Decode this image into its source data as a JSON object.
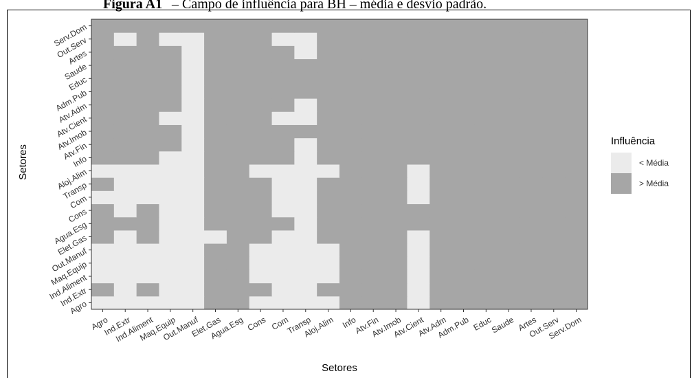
{
  "chart_data": {
    "type": "heatmap",
    "figure_label": "Figura A1",
    "title": "– Campo de influência para BH – média e desvio padrão.",
    "x_label": "Setores",
    "y_label": "Setores",
    "x_categories": [
      "Agro",
      "Ind.Extr",
      "Ind.Aliment",
      "Maq.Equip",
      "Out.Manuf",
      "Elet.Gas",
      "Agua.Esg",
      "Cons",
      "Com",
      "Transp",
      "Aloj.Alim",
      "Info",
      "Atv.Fin",
      "Atv.Imob",
      "Atv.Cient",
      "Atv.Adm",
      "Adm.Pub",
      "Educ",
      "Saude",
      "Artes",
      "Out.Serv",
      "Serv.Dom"
    ],
    "y_categories": [
      "Agro",
      "Ind.Extr",
      "Ind.Aliment",
      "Maq.Equip",
      "Out.Manuf",
      "Elet.Gas",
      "Agua.Esg",
      "Cons",
      "Com",
      "Transp",
      "Aloj.Alim",
      "Info",
      "Atv.Fin",
      "Atv.Imob",
      "Atv.Cient",
      "Atv.Adm",
      "Adm.Pub",
      "Educ",
      "Saude",
      "Artes",
      "Out.Serv",
      "Serv.Dom"
    ],
    "legend_title": "Influência",
    "levels": [
      {
        "name": "< Média",
        "color": "#ebebeb"
      },
      {
        "name": "> Média",
        "color": "#a6a6a6"
      }
    ],
    "values": [
      [
        0,
        0,
        0,
        0,
        0,
        1,
        1,
        0,
        0,
        0,
        0,
        1,
        1,
        1,
        0,
        1,
        1,
        1,
        1,
        1,
        1,
        1
      ],
      [
        1,
        0,
        1,
        0,
        0,
        1,
        1,
        1,
        0,
        0,
        1,
        1,
        1,
        1,
        0,
        1,
        1,
        1,
        1,
        1,
        1,
        1
      ],
      [
        0,
        0,
        0,
        0,
        0,
        1,
        1,
        0,
        0,
        0,
        0,
        1,
        1,
        1,
        0,
        1,
        1,
        1,
        1,
        1,
        1,
        1
      ],
      [
        0,
        0,
        0,
        0,
        0,
        1,
        1,
        0,
        0,
        0,
        0,
        1,
        1,
        1,
        0,
        1,
        1,
        1,
        1,
        1,
        1,
        1
      ],
      [
        0,
        0,
        0,
        0,
        0,
        1,
        1,
        0,
        0,
        0,
        0,
        1,
        1,
        1,
        0,
        1,
        1,
        1,
        1,
        1,
        1,
        1
      ],
      [
        1,
        0,
        1,
        0,
        0,
        0,
        1,
        1,
        0,
        0,
        1,
        1,
        1,
        1,
        0,
        1,
        1,
        1,
        1,
        1,
        1,
        1
      ],
      [
        1,
        1,
        1,
        0,
        0,
        1,
        1,
        1,
        1,
        0,
        1,
        1,
        1,
        1,
        1,
        1,
        1,
        1,
        1,
        1,
        1,
        1
      ],
      [
        1,
        0,
        1,
        0,
        0,
        1,
        1,
        1,
        0,
        0,
        1,
        1,
        1,
        1,
        1,
        1,
        1,
        1,
        1,
        1,
        1,
        1
      ],
      [
        0,
        0,
        0,
        0,
        0,
        1,
        1,
        1,
        0,
        0,
        1,
        1,
        1,
        1,
        0,
        1,
        1,
        1,
        1,
        1,
        1,
        1
      ],
      [
        1,
        0,
        0,
        0,
        0,
        1,
        1,
        1,
        0,
        0,
        1,
        1,
        1,
        1,
        0,
        1,
        1,
        1,
        1,
        1,
        1,
        1
      ],
      [
        0,
        0,
        0,
        0,
        0,
        1,
        1,
        0,
        0,
        0,
        0,
        1,
        1,
        1,
        0,
        1,
        1,
        1,
        1,
        1,
        1,
        1
      ],
      [
        1,
        1,
        1,
        0,
        0,
        1,
        1,
        1,
        1,
        0,
        1,
        1,
        1,
        1,
        1,
        1,
        1,
        1,
        1,
        1,
        1,
        1
      ],
      [
        1,
        1,
        1,
        1,
        0,
        1,
        1,
        1,
        1,
        0,
        1,
        1,
        1,
        1,
        1,
        1,
        1,
        1,
        1,
        1,
        1,
        1
      ],
      [
        1,
        1,
        1,
        1,
        0,
        1,
        1,
        1,
        1,
        1,
        1,
        1,
        1,
        1,
        1,
        1,
        1,
        1,
        1,
        1,
        1,
        1
      ],
      [
        1,
        1,
        1,
        0,
        0,
        1,
        1,
        1,
        0,
        0,
        1,
        1,
        1,
        1,
        1,
        1,
        1,
        1,
        1,
        1,
        1,
        1
      ],
      [
        1,
        1,
        1,
        1,
        0,
        1,
        1,
        1,
        1,
        0,
        1,
        1,
        1,
        1,
        1,
        1,
        1,
        1,
        1,
        1,
        1,
        1
      ],
      [
        1,
        1,
        1,
        1,
        0,
        1,
        1,
        1,
        1,
        1,
        1,
        1,
        1,
        1,
        1,
        1,
        1,
        1,
        1,
        1,
        1,
        1
      ],
      [
        1,
        1,
        1,
        1,
        0,
        1,
        1,
        1,
        1,
        1,
        1,
        1,
        1,
        1,
        1,
        1,
        1,
        1,
        1,
        1,
        1,
        1
      ],
      [
        1,
        1,
        1,
        1,
        0,
        1,
        1,
        1,
        1,
        1,
        1,
        1,
        1,
        1,
        1,
        1,
        1,
        1,
        1,
        1,
        1,
        1
      ],
      [
        1,
        1,
        1,
        1,
        0,
        1,
        1,
        1,
        1,
        0,
        1,
        1,
        1,
        1,
        1,
        1,
        1,
        1,
        1,
        1,
        1,
        1
      ],
      [
        1,
        0,
        1,
        0,
        0,
        1,
        1,
        1,
        0,
        0,
        1,
        1,
        1,
        1,
        1,
        1,
        1,
        1,
        1,
        1,
        1,
        1
      ],
      [
        1,
        1,
        1,
        1,
        1,
        1,
        1,
        1,
        1,
        1,
        1,
        1,
        1,
        1,
        1,
        1,
        1,
        1,
        1,
        1,
        1,
        1
      ]
    ]
  }
}
